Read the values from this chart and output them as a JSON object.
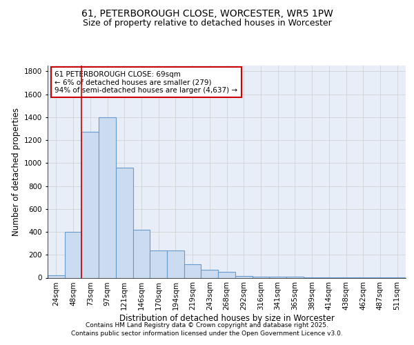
{
  "title_line1": "61, PETERBOROUGH CLOSE, WORCESTER, WR5 1PW",
  "title_line2": "Size of property relative to detached houses in Worcester",
  "xlabel": "Distribution of detached houses by size in Worcester",
  "ylabel": "Number of detached properties",
  "categories": [
    "24sqm",
    "48sqm",
    "73sqm",
    "97sqm",
    "121sqm",
    "146sqm",
    "170sqm",
    "194sqm",
    "219sqm",
    "243sqm",
    "268sqm",
    "292sqm",
    "316sqm",
    "341sqm",
    "365sqm",
    "389sqm",
    "414sqm",
    "438sqm",
    "462sqm",
    "487sqm",
    "511sqm"
  ],
  "values": [
    22,
    400,
    1270,
    1400,
    960,
    420,
    235,
    235,
    120,
    70,
    50,
    15,
    8,
    8,
    8,
    3,
    3,
    3,
    3,
    3,
    3
  ],
  "bar_color": "#ccdcf0",
  "bar_edge_color": "#6699cc",
  "bar_edge_width": 0.8,
  "red_line_x": 1.5,
  "annotation_text": "61 PETERBOROUGH CLOSE: 69sqm\n← 6% of detached houses are smaller (279)\n94% of semi-detached houses are larger (4,637) →",
  "annotation_box_color": "#ffffff",
  "annotation_box_edge_color": "#cc0000",
  "ylim": [
    0,
    1850
  ],
  "yticks": [
    0,
    200,
    400,
    600,
    800,
    1000,
    1200,
    1400,
    1600,
    1800
  ],
  "grid_color": "#cccccc",
  "bg_color": "#e8eef8",
  "footer_line1": "Contains HM Land Registry data © Crown copyright and database right 2025.",
  "footer_line2": "Contains public sector information licensed under the Open Government Licence v3.0.",
  "title_fontsize": 10,
  "subtitle_fontsize": 9,
  "axis_label_fontsize": 8.5,
  "tick_fontsize": 7.5,
  "annotation_fontsize": 7.5,
  "footer_fontsize": 6.5
}
